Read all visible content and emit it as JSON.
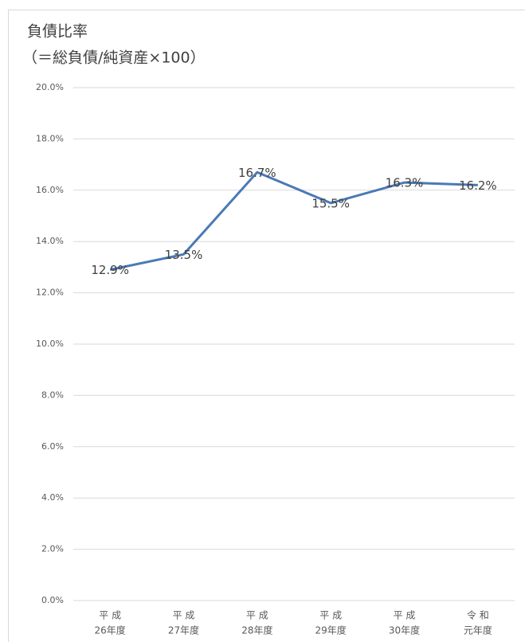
{
  "chart_data": {
    "type": "line",
    "title": "負債比率",
    "subtitle": "（＝総負債/純資産×100）",
    "categories": [
      [
        "平 成",
        "26年度"
      ],
      [
        "平 成",
        "27年度"
      ],
      [
        "平 成",
        "28年度"
      ],
      [
        "平 成",
        "29年度"
      ],
      [
        "平 成",
        "30年度"
      ],
      [
        "令 和",
        "元年度"
      ]
    ],
    "values": [
      12.9,
      13.5,
      16.7,
      15.5,
      16.3,
      16.2
    ],
    "value_labels": [
      "12.9%",
      "13.5%",
      "16.7%",
      "15.5%",
      "16.3%",
      "16.2%"
    ],
    "color": "#4a7ab5",
    "ylim": [
      0,
      20
    ],
    "yticks": [
      {
        "value": 0,
        "label": "0.0%"
      },
      {
        "value": 2,
        "label": "2.0%"
      },
      {
        "value": 4,
        "label": "4.0%"
      },
      {
        "value": 6,
        "label": "6.0%"
      },
      {
        "value": 8,
        "label": "8.0%"
      },
      {
        "value": 10,
        "label": "10.0%"
      },
      {
        "value": 12,
        "label": "12.0%"
      },
      {
        "value": 14,
        "label": "14.0%"
      },
      {
        "value": 16,
        "label": "16.0%"
      },
      {
        "value": 18,
        "label": "18.0%"
      },
      {
        "value": 20,
        "label": "20.0%"
      }
    ],
    "grid": true
  }
}
